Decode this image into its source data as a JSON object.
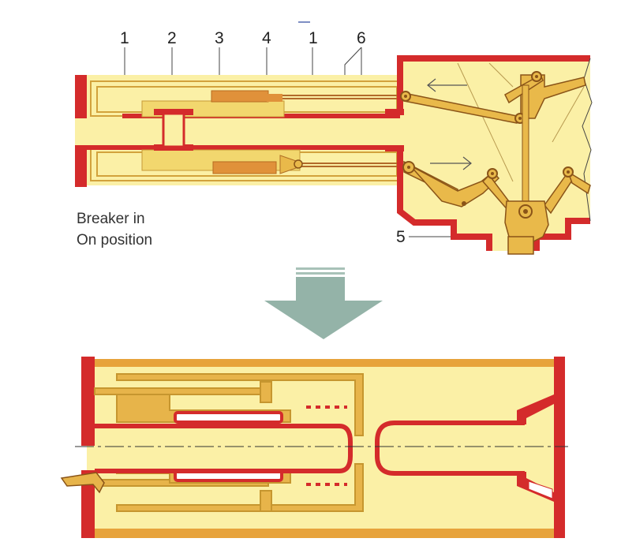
{
  "top_diagram": {
    "part_numbers": [
      "1",
      "2",
      "3",
      "4",
      "1",
      "6",
      "5"
    ],
    "caption_line1": "Breaker in",
    "caption_line2": "On position"
  },
  "colors": {
    "casing_red": "#d42b2b",
    "insulation_yellow": "#fbf0a6",
    "contact_orange": "#e0913a",
    "mechanism_gold": "#e9b94a",
    "arrow_green_grey": "#94b3a8",
    "bottom_frame_gold": "#e7a33b"
  },
  "icons": {
    "transition": "down-arrow-icon",
    "motion_left": "left-arrow-icon",
    "motion_right": "right-arrow-icon"
  }
}
